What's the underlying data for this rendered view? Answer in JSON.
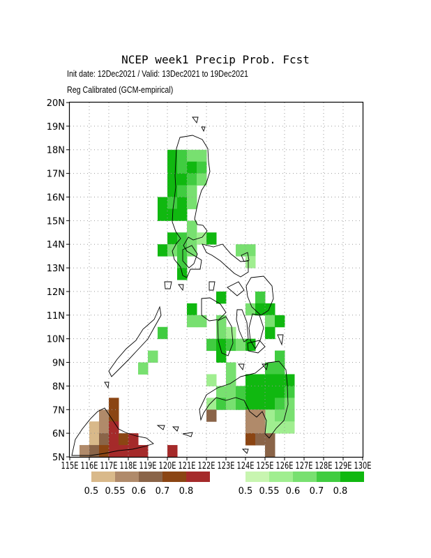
{
  "title": "NCEP week1 Precip Prob. Fcst",
  "subtitle_line1": "Init date: 12Dec2021 / Valid: 13Dec2021 to 19Dec2021",
  "subtitle_line2": "Reg Calibrated (GCM-empirical)",
  "map": {
    "lon_range": [
      115,
      130
    ],
    "lat_range": [
      5,
      20
    ],
    "grid": true,
    "y_ticks": [
      "5N",
      "6N",
      "7N",
      "8N",
      "9N",
      "10N",
      "11N",
      "12N",
      "13N",
      "14N",
      "15N",
      "16N",
      "17N",
      "18N",
      "19N",
      "20N"
    ],
    "x_ticks": [
      "115E",
      "116E",
      "117E",
      "118E",
      "119E",
      "120E",
      "121E",
      "122E",
      "123E",
      "124E",
      "125E",
      "126E",
      "127E",
      "128E",
      "129E",
      "130E"
    ]
  },
  "legend_dry": {
    "colors": [
      "#d9b98a",
      "#b08a6a",
      "#8a6448",
      "#8b4513",
      "#a52a2a"
    ],
    "labels": [
      "0.5",
      "0.55",
      "0.6",
      "0.7",
      "0.8"
    ]
  },
  "legend_wet": {
    "colors": [
      "#c8f5b0",
      "#a0ee90",
      "#78e070",
      "#40cc40",
      "#10b810"
    ],
    "labels": [
      "0.5",
      "0.55",
      "0.6",
      "0.7",
      "0.8"
    ]
  },
  "wet_cells": [
    {
      "lon": 120.25,
      "lat": 17.75,
      "c": 4
    },
    {
      "lon": 120.75,
      "lat": 17.75,
      "c": 3
    },
    {
      "lon": 121.25,
      "lat": 17.75,
      "c": 2
    },
    {
      "lon": 121.75,
      "lat": 17.75,
      "c": 2
    },
    {
      "lon": 120.25,
      "lat": 17.25,
      "c": 4
    },
    {
      "lon": 120.75,
      "lat": 17.25,
      "c": 3
    },
    {
      "lon": 121.25,
      "lat": 17.25,
      "c": 4
    },
    {
      "lon": 121.75,
      "lat": 17.25,
      "c": 3
    },
    {
      "lon": 120.25,
      "lat": 16.75,
      "c": 4
    },
    {
      "lon": 120.75,
      "lat": 16.75,
      "c": 4
    },
    {
      "lon": 121.25,
      "lat": 16.75,
      "c": 3
    },
    {
      "lon": 121.75,
      "lat": 16.75,
      "c": 2
    },
    {
      "lon": 120.25,
      "lat": 16.25,
      "c": 4
    },
    {
      "lon": 120.75,
      "lat": 16.25,
      "c": 3
    },
    {
      "lon": 121.25,
      "lat": 16.25,
      "c": 2
    },
    {
      "lon": 119.75,
      "lat": 15.75,
      "c": 4
    },
    {
      "lon": 120.25,
      "lat": 15.75,
      "c": 3
    },
    {
      "lon": 120.75,
      "lat": 15.75,
      "c": 4
    },
    {
      "lon": 121.25,
      "lat": 15.75,
      "c": 2
    },
    {
      "lon": 119.75,
      "lat": 15.25,
      "c": 4
    },
    {
      "lon": 120.25,
      "lat": 15.25,
      "c": 4
    },
    {
      "lon": 120.75,
      "lat": 15.25,
      "c": 4
    },
    {
      "lon": 121.25,
      "lat": 14.75,
      "c": 2
    },
    {
      "lon": 120.25,
      "lat": 14.25,
      "c": 4
    },
    {
      "lon": 120.75,
      "lat": 14.25,
      "c": 3
    },
    {
      "lon": 121.25,
      "lat": 14.25,
      "c": 2
    },
    {
      "lon": 121.75,
      "lat": 14.25,
      "c": 1
    },
    {
      "lon": 122.25,
      "lat": 14.25,
      "c": 4
    },
    {
      "lon": 119.75,
      "lat": 13.75,
      "c": 4
    },
    {
      "lon": 120.25,
      "lat": 13.75,
      "c": 2
    },
    {
      "lon": 120.75,
      "lat": 13.75,
      "c": 3
    },
    {
      "lon": 121.25,
      "lat": 13.75,
      "c": 2
    },
    {
      "lon": 120.75,
      "lat": 13.25,
      "c": 3
    },
    {
      "lon": 123.75,
      "lat": 13.75,
      "c": 2
    },
    {
      "lon": 124.25,
      "lat": 13.75,
      "c": 2
    },
    {
      "lon": 124.25,
      "lat": 13.25,
      "c": 1
    },
    {
      "lon": 120.75,
      "lat": 12.75,
      "c": 4
    },
    {
      "lon": 122.75,
      "lat": 11.75,
      "c": 4
    },
    {
      "lon": 124.75,
      "lat": 11.75,
      "c": 3
    },
    {
      "lon": 121.25,
      "lat": 11.25,
      "c": 4
    },
    {
      "lon": 124.25,
      "lat": 11.25,
      "c": 2
    },
    {
      "lon": 124.75,
      "lat": 11.25,
      "c": 4
    },
    {
      "lon": 125.25,
      "lat": 11.25,
      "c": 4
    },
    {
      "lon": 121.25,
      "lat": 10.75,
      "c": 2
    },
    {
      "lon": 121.75,
      "lat": 10.75,
      "c": 2
    },
    {
      "lon": 122.75,
      "lat": 10.75,
      "c": 2
    },
    {
      "lon": 125.25,
      "lat": 10.75,
      "c": 2
    },
    {
      "lon": 125.75,
      "lat": 10.75,
      "c": 4
    },
    {
      "lon": 122.75,
      "lat": 10.25,
      "c": 2
    },
    {
      "lon": 123.25,
      "lat": 10.25,
      "c": 1
    },
    {
      "lon": 125.25,
      "lat": 10.25,
      "c": 4
    },
    {
      "lon": 122.25,
      "lat": 9.75,
      "c": 3
    },
    {
      "lon": 122.75,
      "lat": 9.75,
      "c": 4
    },
    {
      "lon": 123.25,
      "lat": 9.75,
      "c": 3
    },
    {
      "lon": 123.75,
      "lat": 9.75,
      "c": 2
    },
    {
      "lon": 124.25,
      "lat": 9.75,
      "c": 4
    },
    {
      "lon": 122.75,
      "lat": 9.25,
      "c": 4
    },
    {
      "lon": 125.75,
      "lat": 9.25,
      "c": 3
    },
    {
      "lon": 123.25,
      "lat": 8.75,
      "c": 2
    },
    {
      "lon": 125.25,
      "lat": 8.75,
      "c": 3
    },
    {
      "lon": 125.75,
      "lat": 8.75,
      "c": 3
    },
    {
      "lon": 122.75,
      "lat": 7.75,
      "c": 2
    },
    {
      "lon": 123.25,
      "lat": 7.75,
      "c": 2
    },
    {
      "lon": 123.75,
      "lat": 7.75,
      "c": 3
    },
    {
      "lon": 124.25,
      "lat": 7.75,
      "c": 4
    },
    {
      "lon": 124.75,
      "lat": 7.75,
      "c": 4
    },
    {
      "lon": 125.25,
      "lat": 7.75,
      "c": 4
    },
    {
      "lon": 125.75,
      "lat": 7.75,
      "c": 4
    },
    {
      "lon": 126.25,
      "lat": 7.75,
      "c": 3
    },
    {
      "lon": 122.25,
      "lat": 7.25,
      "c": 1
    },
    {
      "lon": 122.75,
      "lat": 7.25,
      "c": 3
    },
    {
      "lon": 123.25,
      "lat": 7.25,
      "c": 2
    },
    {
      "lon": 123.75,
      "lat": 7.25,
      "c": 3
    },
    {
      "lon": 124.25,
      "lat": 7.25,
      "c": 4
    },
    {
      "lon": 124.75,
      "lat": 7.25,
      "c": 4
    },
    {
      "lon": 125.25,
      "lat": 7.25,
      "c": 4
    },
    {
      "lon": 125.75,
      "lat": 7.25,
      "c": 3
    },
    {
      "lon": 126.25,
      "lat": 7.25,
      "c": 2
    },
    {
      "lon": 122.25,
      "lat": 8.25,
      "c": 1
    },
    {
      "lon": 123.25,
      "lat": 8.25,
      "c": 2
    },
    {
      "lon": 124.25,
      "lat": 8.25,
      "c": 4
    },
    {
      "lon": 124.75,
      "lat": 8.25,
      "c": 4
    },
    {
      "lon": 125.25,
      "lat": 8.25,
      "c": 4
    },
    {
      "lon": 125.75,
      "lat": 8.25,
      "c": 4
    },
    {
      "lon": 126.25,
      "lat": 8.25,
      "c": 4
    },
    {
      "lon": 125.25,
      "lat": 6.75,
      "c": 1
    },
    {
      "lon": 125.75,
      "lat": 6.75,
      "c": 2
    },
    {
      "lon": 126.25,
      "lat": 6.75,
      "c": 2
    },
    {
      "lon": 125.25,
      "lat": 6.25,
      "c": 1
    },
    {
      "lon": 125.75,
      "lat": 6.25,
      "c": 1
    },
    {
      "lon": 126.25,
      "lat": 6.25,
      "c": 1
    },
    {
      "lon": 119.25,
      "lat": 9.25,
      "c": 2
    },
    {
      "lon": 118.75,
      "lat": 8.75,
      "c": 2
    },
    {
      "lon": 119.75,
      "lat": 10.25,
      "c": 3
    }
  ],
  "dry_cells": [
    {
      "lon": 117.25,
      "lat": 7.25,
      "c": 3
    },
    {
      "lon": 116.75,
      "lat": 6.75,
      "c": 1
    },
    {
      "lon": 117.25,
      "lat": 6.75,
      "c": 3
    },
    {
      "lon": 116.25,
      "lat": 6.25,
      "c": 0
    },
    {
      "lon": 116.75,
      "lat": 6.25,
      "c": 1
    },
    {
      "lon": 117.25,
      "lat": 6.25,
      "c": 4
    },
    {
      "lon": 116.25,
      "lat": 5.75,
      "c": 0
    },
    {
      "lon": 116.75,
      "lat": 5.75,
      "c": 2
    },
    {
      "lon": 117.25,
      "lat": 5.75,
      "c": 4
    },
    {
      "lon": 117.75,
      "lat": 5.75,
      "c": 3
    },
    {
      "lon": 118.25,
      "lat": 5.75,
      "c": 4
    },
    {
      "lon": 115.75,
      "lat": 5.25,
      "c": 1
    },
    {
      "lon": 116.25,
      "lat": 5.25,
      "c": 2
    },
    {
      "lon": 116.75,
      "lat": 5.25,
      "c": 3
    },
    {
      "lon": 117.25,
      "lat": 5.25,
      "c": 4
    },
    {
      "lon": 117.75,
      "lat": 5.25,
      "c": 4
    },
    {
      "lon": 118.25,
      "lat": 5.25,
      "c": 4
    },
    {
      "lon": 118.75,
      "lat": 5.25,
      "c": 4
    },
    {
      "lon": 120.25,
      "lat": 5.25,
      "c": 4
    },
    {
      "lon": 122.25,
      "lat": 6.75,
      "c": 2
    },
    {
      "lon": 124.25,
      "lat": 6.75,
      "c": 1
    },
    {
      "lon": 124.75,
      "lat": 6.75,
      "c": 1
    },
    {
      "lon": 124.25,
      "lat": 6.25,
      "c": 1
    },
    {
      "lon": 124.75,
      "lat": 6.25,
      "c": 1
    },
    {
      "lon": 124.25,
      "lat": 5.75,
      "c": 3
    },
    {
      "lon": 124.75,
      "lat": 5.75,
      "c": 2
    },
    {
      "lon": 125.25,
      "lat": 5.75,
      "c": 2
    },
    {
      "lon": 125.25,
      "lat": 5.25,
      "c": 2
    }
  ]
}
